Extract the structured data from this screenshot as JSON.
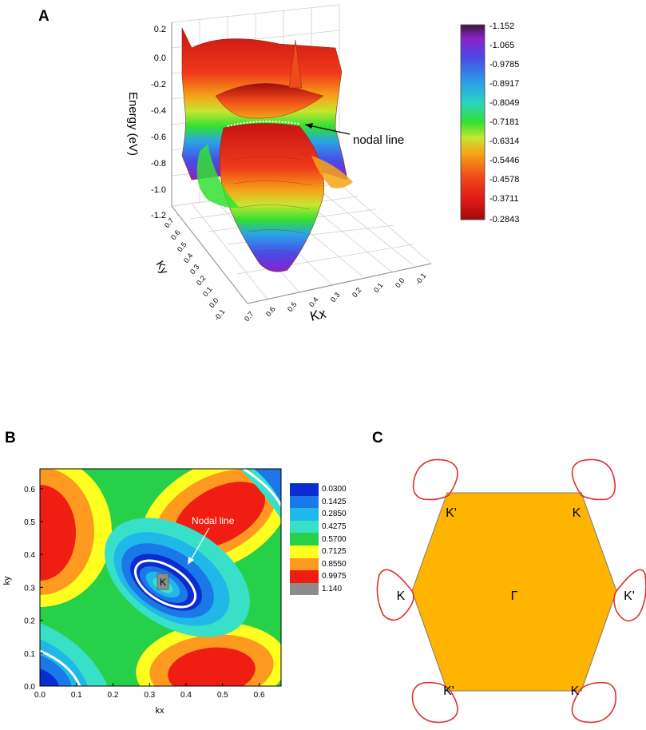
{
  "panels": {
    "a": {
      "label": "A",
      "ylabel": "Energy (eV)",
      "xlabel": "Kx",
      "ky_label": "Ky",
      "annotation": "nodal line",
      "z_ticks": [
        "0.2",
        "0.0",
        "-0.2",
        "-0.4",
        "-0.6",
        "-0.8",
        "-1.0",
        "-1.2"
      ],
      "ky_ticks": [
        "0.7",
        "0.6",
        "0.5",
        "0.4",
        "0.3",
        "0.2",
        "0.1",
        "0.0",
        "-0.1"
      ],
      "kx_ticks": [
        "0.7",
        "0.6",
        "0.5",
        "0.4",
        "0.3",
        "0.2",
        "0.1",
        "0.0",
        "-0.1"
      ],
      "colorbar": {
        "labels": [
          "-1.152",
          "-1.065",
          "-0.9785",
          "-0.8917",
          "-0.8049",
          "-0.7181",
          "-0.6314",
          "-0.5446",
          "-0.4578",
          "-0.3711",
          "-0.2843"
        ],
        "colors": [
          "#3a1a38",
          "#8a22c8",
          "#4a4ae6",
          "#2aa2e8",
          "#2ad2c2",
          "#32e032",
          "#c6e630",
          "#f6a418",
          "#f04a1a",
          "#e01818",
          "#a00a0a"
        ]
      }
    },
    "b": {
      "label": "B",
      "xlabel": "kx",
      "ylabel": "ky",
      "annotation": "Nodal line",
      "point_label": "K",
      "x_ticks": [
        "0.0",
        "0.1",
        "0.2",
        "0.3",
        "0.4",
        "0.5",
        "0.6"
      ],
      "y_ticks": [
        "0.0",
        "0.1",
        "0.2",
        "0.3",
        "0.4",
        "0.5",
        "0.6"
      ],
      "legend": {
        "labels": [
          "0.0300",
          "0.1425",
          "0.2850",
          "0.4275",
          "0.5700",
          "0.7125",
          "0.8550",
          "0.9975",
          "1.140"
        ],
        "colors": [
          "#0a2cd0",
          "#1a78e8",
          "#20b8e8",
          "#38e0c8",
          "#26d048",
          "#ffff20",
          "#ff9a20",
          "#f01e12",
          "#8c8c8c"
        ]
      }
    },
    "c": {
      "label": "C",
      "center": "Γ",
      "vertex_labels": [
        "K'",
        "K",
        "K",
        "K'",
        "K'",
        "K"
      ],
      "fill_color": "#ffb400",
      "loop_color": "#e03030"
    }
  },
  "chart_data": [
    {
      "type": "surface",
      "title": "",
      "xlabel": "Kx",
      "ylabel": "Ky",
      "zlabel": "Energy (eV)",
      "xlim": [
        -0.1,
        0.7
      ],
      "ylim": [
        -0.1,
        0.7
      ],
      "zlim": [
        -1.2,
        0.2
      ],
      "colorbar_range": [
        -1.152,
        -0.2843
      ],
      "annotations": [
        "nodal line"
      ]
    },
    {
      "type": "heatmap",
      "title": "",
      "xlabel": "kx",
      "ylabel": "ky",
      "xlim": [
        0.0,
        0.66
      ],
      "ylim": [
        0.0,
        0.66
      ],
      "levels": [
        0.03,
        0.1425,
        0.285,
        0.4275,
        0.57,
        0.7125,
        0.855,
        0.9975,
        1.14
      ],
      "annotations": [
        "Nodal line",
        "K"
      ]
    }
  ]
}
